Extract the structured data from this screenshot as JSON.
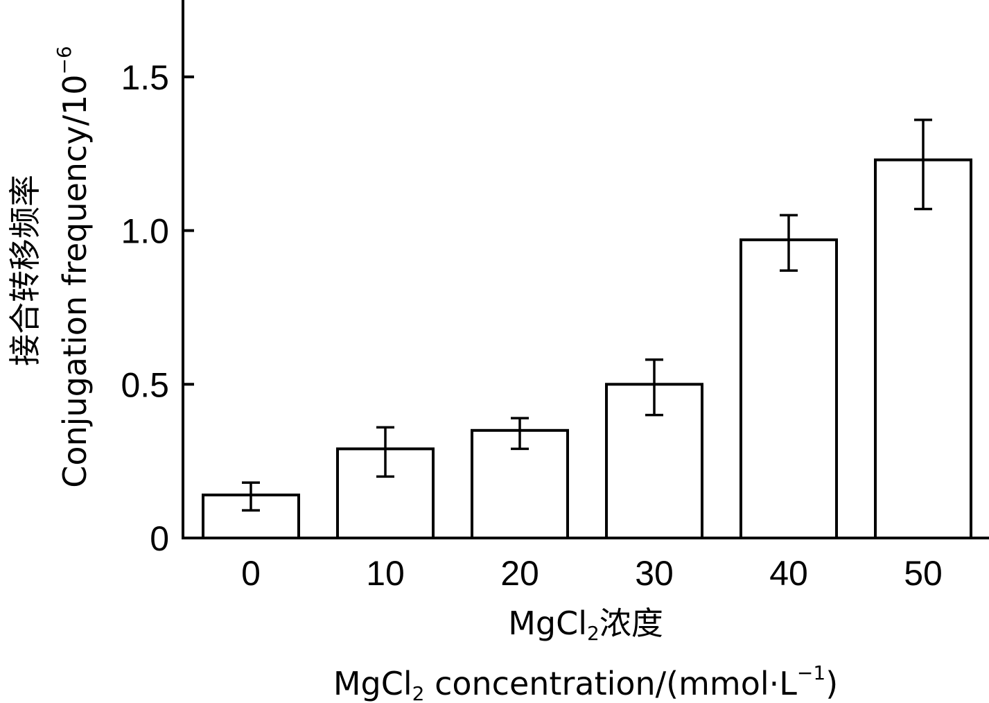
{
  "chart_data": {
    "type": "bar",
    "categories": [
      "0",
      "10",
      "20",
      "30",
      "40",
      "50"
    ],
    "values": [
      0.14,
      0.29,
      0.35,
      0.5,
      0.97,
      1.23
    ],
    "error_low": [
      0.09,
      0.2,
      0.29,
      0.4,
      0.87,
      1.07
    ],
    "error_high": [
      0.18,
      0.36,
      0.39,
      0.58,
      1.05,
      1.36
    ],
    "ylim": [
      0,
      1.75
    ],
    "yticks": [
      0,
      0.5,
      1.0,
      1.5
    ],
    "ytick_labels": [
      "0",
      "0.5",
      "1.0",
      "1.5"
    ],
    "xlabel_cn": "MgCl",
    "xlabel_cn_sub": "2",
    "xlabel_cn_rest": "浓度",
    "xlabel_en": "MgCl",
    "xlabel_en_sub": "2",
    "xlabel_en_rest": " concentration/(mmol·L",
    "xlabel_en_sup": "−1",
    "xlabel_en_end": ")",
    "ylabel_cn": "接合转移频率",
    "ylabel_en": "Conjugation frequency/10",
    "ylabel_en_sup": "−6",
    "grid": false,
    "legend": "none",
    "colors": {
      "bar_fill": "#ffffff",
      "stroke": "#000000"
    }
  }
}
